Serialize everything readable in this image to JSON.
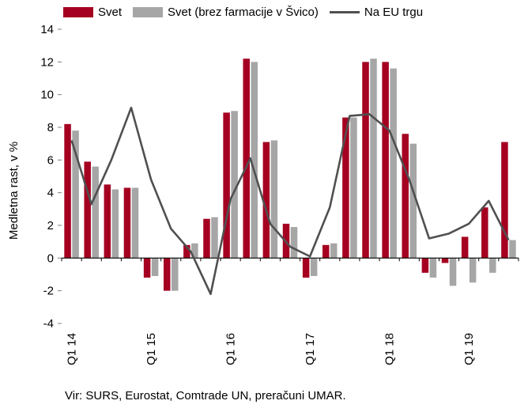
{
  "legend": {
    "svet": "Svet",
    "svet_brez": "Svet (brez farmacije v Švico)",
    "na_eu": "Na EU trgu"
  },
  "source": "Vir: SURS, Eurostat, Comtrade UN, preračuni UMAR.",
  "colors": {
    "svet": "#A50021",
    "svet_brez": "#A6A6A6",
    "na_eu": "#505050"
  },
  "chart_data": {
    "type": "bar",
    "ylabel": "Medletna rast, v %",
    "ylim": [
      -4,
      14
    ],
    "yticks": [
      -4,
      -2,
      0,
      2,
      4,
      6,
      8,
      10,
      12,
      14
    ],
    "categories": [
      "Q1 14",
      "Q2 14",
      "Q3 14",
      "Q4 14",
      "Q1 15",
      "Q2 15",
      "Q3 15",
      "Q4 15",
      "Q1 16",
      "Q2 16",
      "Q3 16",
      "Q4 16",
      "Q1 17",
      "Q2 17",
      "Q3 17",
      "Q4 17",
      "Q1 18",
      "Q2 18",
      "Q3 18",
      "Q4 18",
      "Q1 19",
      "Q2 19",
      "Q3 19"
    ],
    "x_tick_labels": [
      "Q1 14",
      "",
      "",
      "",
      "Q1 15",
      "",
      "",
      "",
      "Q1 16",
      "",
      "",
      "",
      "Q1 17",
      "",
      "",
      "",
      "Q1 18",
      "",
      "",
      "",
      "Q1 19",
      "",
      ""
    ],
    "series": [
      {
        "name": "Svet",
        "kind": "bar",
        "values": [
          8.2,
          5.9,
          4.5,
          4.3,
          -1.2,
          -2.0,
          0.8,
          2.4,
          8.9,
          12.2,
          7.1,
          2.1,
          -1.2,
          0.8,
          8.6,
          12.0,
          12.0,
          7.6,
          -0.9,
          -0.3,
          1.3,
          3.1,
          7.1
        ]
      },
      {
        "name": "Svet (brez farmacije v Švico)",
        "kind": "bar",
        "values": [
          7.8,
          5.6,
          4.2,
          4.3,
          -1.1,
          -2.0,
          0.9,
          2.5,
          9.0,
          12.0,
          7.2,
          1.9,
          -1.1,
          0.9,
          8.6,
          12.2,
          11.6,
          7.0,
          -1.2,
          -1.7,
          -1.5,
          -0.9,
          1.1
        ]
      },
      {
        "name": "Na EU trgu",
        "kind": "line",
        "values": [
          7.2,
          3.3,
          6.0,
          9.2,
          4.8,
          1.8,
          0.4,
          -2.2,
          3.6,
          6.1,
          2.1,
          0.7,
          0.1,
          3.1,
          8.7,
          8.8,
          7.8,
          4.8,
          1.2,
          1.5,
          2.1,
          3.5,
          1.1
        ]
      }
    ]
  }
}
